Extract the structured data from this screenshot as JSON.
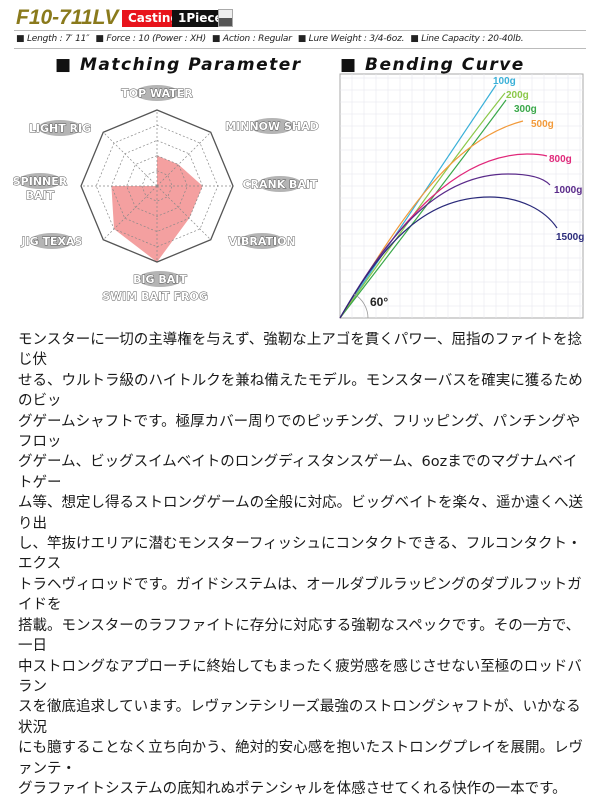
{
  "header": {
    "model": "F10-711LV",
    "badges": [
      "Casting",
      "1Piece"
    ],
    "offset_icon": "offset-handle-icon"
  },
  "specs": [
    "■ Length : 7′ 11″",
    "■ Force : 10 (Power : XH)",
    "■ Action : Regular",
    "■ Lure Weight : 3/4-6oz.",
    "■ Line Capacity : 20-40lb."
  ],
  "matching": {
    "title": "■ Matching Parameter",
    "levels": 5,
    "fill_color": "#f4a0a0",
    "axes": [
      {
        "label": "TOP WATER",
        "value": 2
      },
      {
        "label": "MINNOW SHAD",
        "value": 2
      },
      {
        "label": "CRANK BAIT",
        "value": 3
      },
      {
        "label": "VIBRATION",
        "value": 3
      },
      {
        "label": "BIG BAIT",
        "label2": "SWIM BAIT FROG",
        "value": 5
      },
      {
        "label": "JIG TEXAS",
        "value": 4
      },
      {
        "label": "SPINNER",
        "label2": "BAIT",
        "value": 3
      },
      {
        "label": "LIGHT RIG",
        "value": 0
      }
    ]
  },
  "bending": {
    "title": "■ Bending Curve",
    "angle": "60°",
    "curves": [
      {
        "label": "100g",
        "color": "#3ab0d8"
      },
      {
        "label": "200g",
        "color": "#8cc84a"
      },
      {
        "label": "300g",
        "color": "#3aa84a"
      },
      {
        "label": "500g",
        "color": "#f29a3a"
      },
      {
        "label": "800g",
        "color": "#e0287a"
      },
      {
        "label": "1000g",
        "color": "#5a2a8a"
      },
      {
        "label": "1500g",
        "color": "#2a2a7a"
      }
    ]
  },
  "description": [
    "モンスターに一切の主導権を与えず、強靭な上アゴを貫くパワー、屈指のファイトを捻じ伏",
    "せる、ウルトラ級のハイトルクを兼ね備えたモデル。モンスターバスを確実に獲るためのビッ",
    "グゲームシャフトです。極厚カバー周りでのピッチング、フリッピング、パンチングやフロッ",
    "グゲーム、ビッグスイムベイトのロングディスタンスゲーム、6ozまでのマグナムベイトゲー",
    "ム等、想定し得るストロングゲームの全般に対応。ビッグベイトを楽々、遥か遠くへ送り出",
    "し、竿抜けエリアに潜むモンスターフィッシュにコンタクトできる、フルコンタクト・エクス",
    "トラヘヴィロッドです。ガイドシステムは、オールダブルラッピングのダブルフットガイドを",
    "搭載。モンスターのラフファイトに存分に対応する強靭なスペックです。その一方で、一日",
    "中ストロングなアプローチに終始してもまったく疲労感を感じさせない至極のロッドバラン",
    "スを徹底追求しています。レヴァンテシリーズ最強のストロングシャフトが、いかなる状況",
    "にも臆することなく立ち向かう、絶対的安心感を抱いたストロングプレイを展開。レヴァンテ・",
    "グラファイトシステムの底知れぬポテンシャルを体感させてくれる快作の一本です。"
  ]
}
